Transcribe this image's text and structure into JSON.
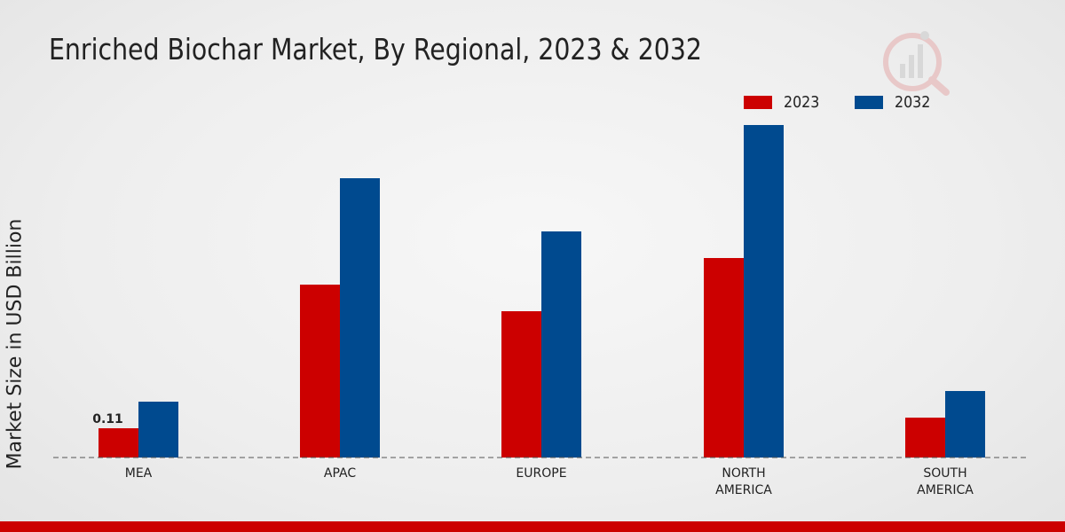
{
  "chart_data": {
    "type": "bar",
    "title": "Enriched Biochar Market, By Regional, 2023 & 2032",
    "xlabel": "",
    "ylabel": "Market Size in USD Billion",
    "ylim": [
      0,
      1.4
    ],
    "categories": [
      "MEA",
      "APAC",
      "EUROPE",
      "NORTH AMERICA",
      "SOUTH AMERICA"
    ],
    "category_lines": [
      [
        "MEA"
      ],
      [
        "APAC"
      ],
      [
        "EUROPE"
      ],
      [
        "NORTH",
        "AMERICA"
      ],
      [
        "SOUTH",
        "AMERICA"
      ]
    ],
    "series": [
      {
        "name": "2023",
        "color": "#cc0000",
        "values": [
          0.11,
          0.65,
          0.55,
          0.75,
          0.15
        ]
      },
      {
        "name": "2032",
        "color": "#004a8f",
        "values": [
          0.21,
          1.05,
          0.85,
          1.25,
          0.25
        ]
      }
    ],
    "data_labels": [
      {
        "series": 0,
        "index": 0,
        "text": "0.11"
      }
    ],
    "legend_position": "top-right",
    "grid": false
  }
}
